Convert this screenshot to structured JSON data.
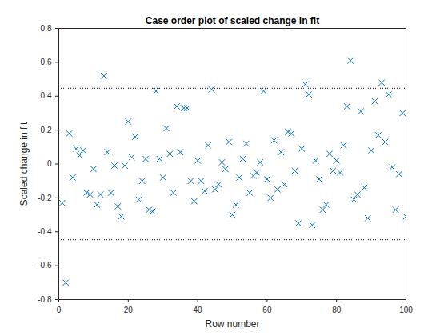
{
  "chart_data": {
    "type": "scatter",
    "title": "Case order plot of scaled change in fit",
    "xlabel": "Row number",
    "ylabel": "Scaled change in fit",
    "x": [
      1,
      2,
      3,
      4,
      5,
      6,
      7,
      8,
      9,
      10,
      11,
      12,
      13,
      14,
      15,
      16,
      17,
      18,
      19,
      20,
      21,
      22,
      23,
      24,
      25,
      26,
      27,
      28,
      29,
      30,
      31,
      32,
      33,
      34,
      35,
      36,
      37,
      38,
      39,
      40,
      41,
      42,
      43,
      44,
      45,
      46,
      47,
      48,
      49,
      50,
      51,
      52,
      53,
      54,
      55,
      56,
      57,
      58,
      59,
      60,
      61,
      62,
      63,
      64,
      65,
      66,
      67,
      68,
      69,
      70,
      71,
      72,
      73,
      74,
      75,
      76,
      77,
      78,
      79,
      80,
      81,
      82,
      83,
      84,
      85,
      86,
      87,
      88,
      89,
      90,
      91,
      92,
      93,
      94,
      95,
      96,
      97,
      98,
      99,
      100
    ],
    "values": [
      -0.23,
      -0.7,
      0.18,
      -0.08,
      0.09,
      0.05,
      0.08,
      -0.17,
      -0.18,
      -0.03,
      -0.24,
      -0.18,
      0.52,
      0.07,
      -0.17,
      -0.01,
      -0.25,
      -0.31,
      -0.01,
      0.25,
      0.04,
      0.16,
      -0.21,
      -0.1,
      0.03,
      -0.27,
      -0.28,
      0.43,
      0.03,
      -0.08,
      0.21,
      0.06,
      -0.17,
      0.34,
      0.07,
      0.33,
      0.33,
      -0.1,
      -0.22,
      0.02,
      -0.1,
      -0.16,
      0.11,
      0.44,
      -0.15,
      -0.12,
      0.01,
      -0.03,
      0.13,
      -0.3,
      -0.24,
      -0.08,
      0.03,
      0.12,
      -0.17,
      -0.07,
      -0.05,
      0.01,
      0.43,
      -0.09,
      -0.2,
      0.14,
      -0.15,
      0.07,
      -0.12,
      0.19,
      0.18,
      -0.04,
      -0.35,
      0.09,
      0.47,
      0.41,
      -0.36,
      0.02,
      -0.09,
      -0.27,
      -0.24,
      0.06,
      -0.04,
      0.02,
      -0.05,
      0.11,
      0.34,
      0.61,
      -0.21,
      -0.18,
      0.31,
      -0.14,
      -0.32,
      0.08,
      0.37,
      0.17,
      0.48,
      0.13,
      0.41,
      -0.02,
      -0.27,
      -0.06,
      0.3,
      -0.31
    ],
    "color": "#0072bd",
    "marker": "x",
    "reference_lines": [
      0.447,
      -0.447
    ],
    "xlim": [
      0,
      100
    ],
    "xticks": [
      0,
      20,
      40,
      60,
      80,
      100
    ],
    "ylim": [
      -0.8,
      0.8
    ],
    "yticks": [
      -0.8,
      -0.6,
      -0.4,
      -0.2,
      0,
      0.2,
      0.4,
      0.6,
      0.8
    ],
    "grid": false
  }
}
